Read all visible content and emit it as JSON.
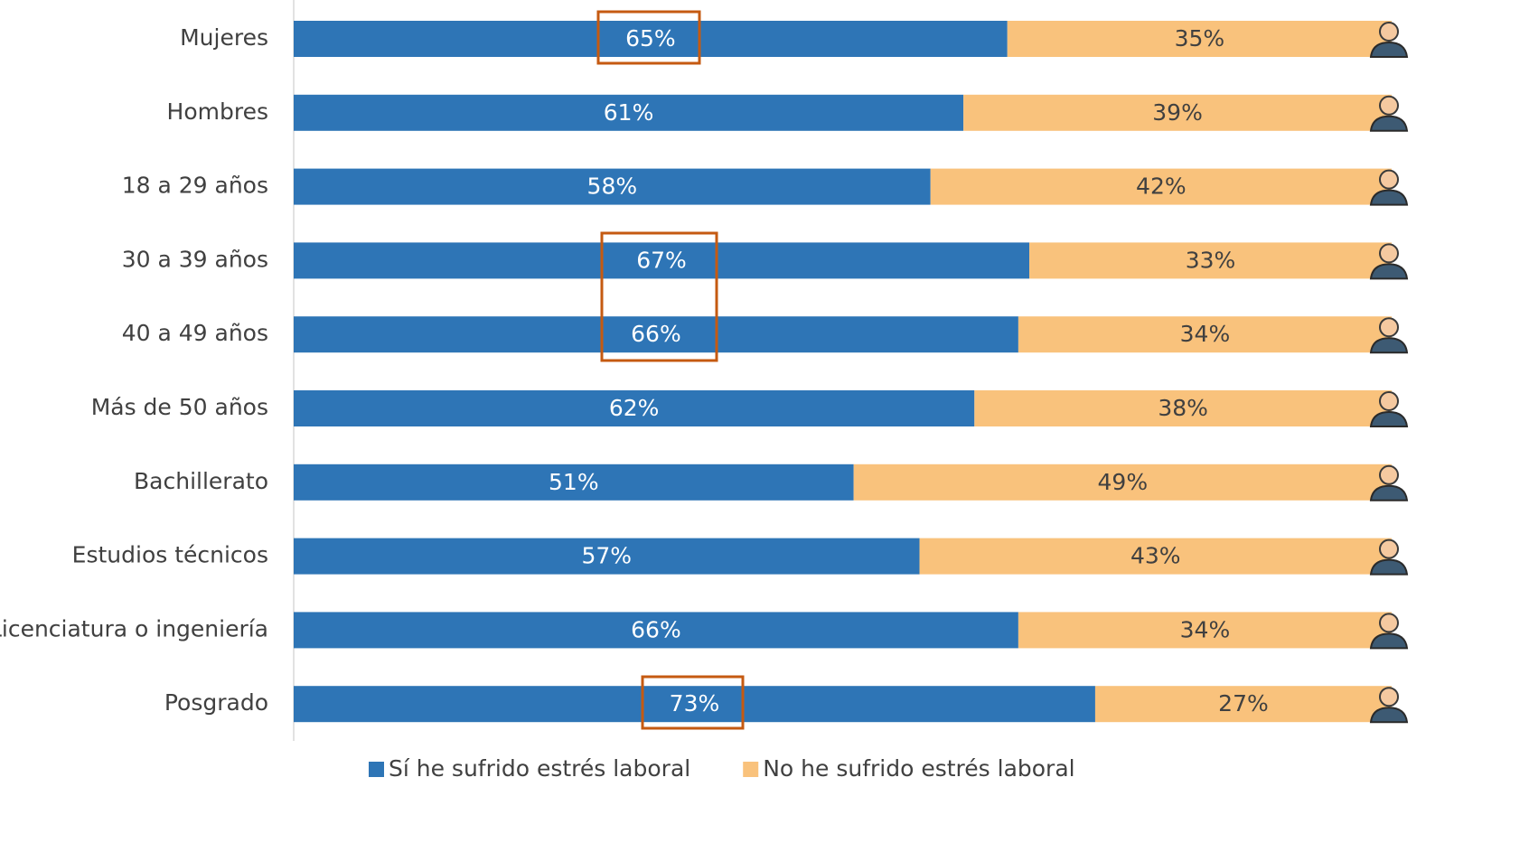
{
  "chart_data": {
    "type": "stacked_barh",
    "categories": [
      "Mujeres",
      "Hombres",
      "18 a 29 años",
      "30 a 39 años",
      "40 a 49 años",
      "Más de 50 años",
      "Bachillerato",
      "Estudios técnicos",
      "Licenciatura o ingeniería",
      "Posgrado"
    ],
    "series": [
      {
        "name": "Sí he sufrido estrés laboral",
        "color": "#2e75b6",
        "values": [
          65,
          61,
          58,
          67,
          66,
          62,
          51,
          57,
          66,
          73
        ],
        "value_labels": [
          "65%",
          "61%",
          "58%",
          "67%",
          "66%",
          "62%",
          "51%",
          "57%",
          "66%",
          "73%"
        ]
      },
      {
        "name": "No he sufrido estrés laboral",
        "color": "#f9c27c",
        "values": [
          35,
          39,
          42,
          33,
          34,
          38,
          49,
          43,
          34,
          27
        ],
        "value_labels": [
          "35%",
          "39%",
          "42%",
          "33%",
          "34%",
          "38%",
          "49%",
          "43%",
          "34%",
          "27%"
        ]
      }
    ],
    "xlim": [
      0,
      100
    ],
    "legend": "bottom"
  }
}
